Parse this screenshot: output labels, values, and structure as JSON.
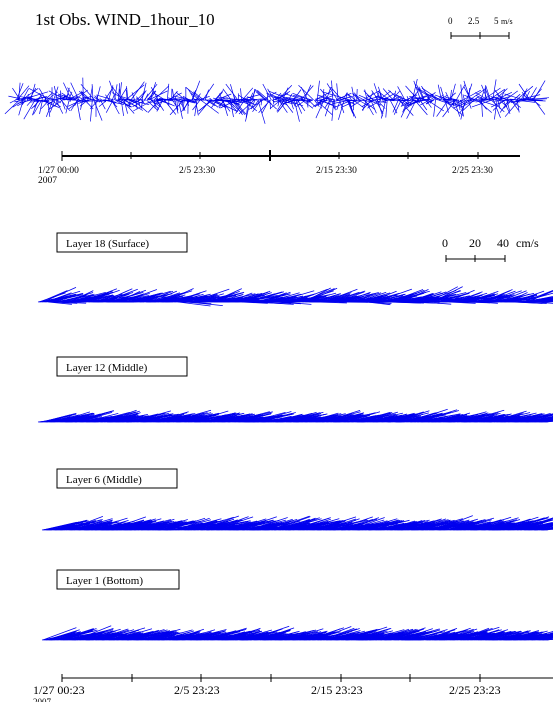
{
  "chart_data": [
    {
      "type": "stick-plot",
      "title": "1st Obs.  WIND_1hour_10",
      "scale": {
        "ticks": [
          "0",
          "2.5",
          "5"
        ],
        "unit": "m/s"
      },
      "x_tick_labels": [
        "1/27 00:00",
        "2/5 23:30",
        "2/15 23:30",
        "2/25 23:30"
      ],
      "x_year_label": "2007",
      "line_color": "#0000ee"
    },
    {
      "type": "stick-plot",
      "scale": {
        "ticks": [
          "0",
          "20",
          "40"
        ],
        "unit": "cm/s"
      },
      "panels": [
        {
          "label": "Layer 18 (Surface)"
        },
        {
          "label": "Layer 12 (Middle)"
        },
        {
          "label": "Layer 6 (Middle)"
        },
        {
          "label": "Layer 1 (Bottom)"
        }
      ],
      "x_tick_labels": [
        "1/27 00:23",
        "2/5 23:23",
        "2/15 23:23",
        "2/25 23:23"
      ],
      "x_year_label": "2007",
      "line_color": "#0000ee"
    }
  ]
}
